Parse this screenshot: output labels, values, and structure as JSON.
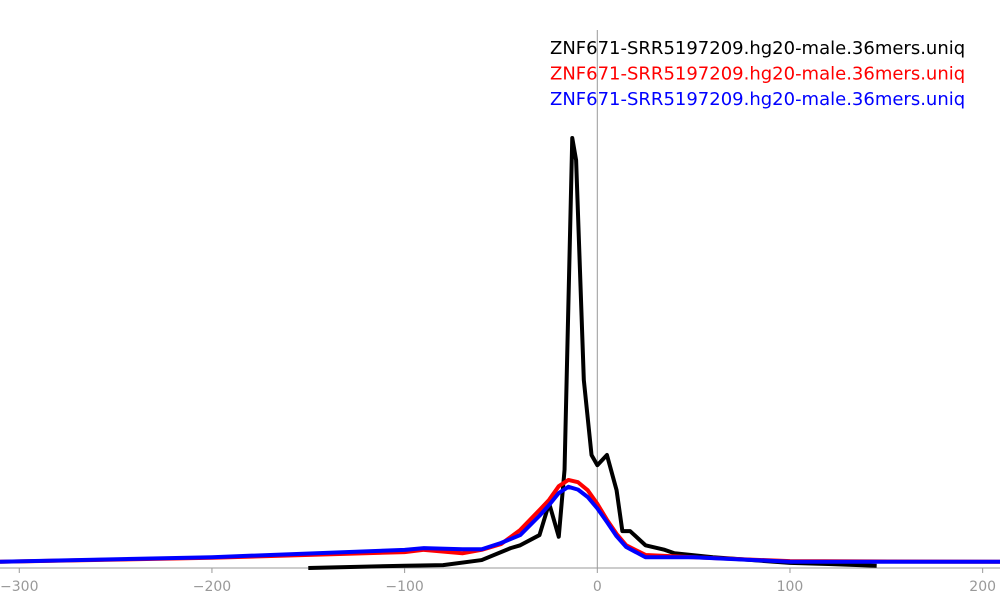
{
  "chart_data": {
    "type": "line",
    "xlim": [
      -310,
      209
    ],
    "ylim": [
      0,
      100
    ],
    "xticks": [
      {
        "value": -300,
        "label": "−300"
      },
      {
        "value": -200,
        "label": "−200"
      },
      {
        "value": -100,
        "label": "−100"
      },
      0,
      100,
      200
    ],
    "series": [
      {
        "name": "ZNF671-SRR5197209.hg20-male.36mers.uniq",
        "color": "#000000",
        "x": [
          -150,
          -100,
          -80,
          -60,
          -45,
          -40,
          -30,
          -25,
          -20,
          -17,
          -13,
          -11,
          -7,
          -3,
          0,
          5,
          10,
          13,
          17,
          25,
          35,
          40,
          60,
          80,
          100,
          120,
          145
        ],
        "values": [
          0,
          0.4,
          0.5,
          1.4,
          3.5,
          4.0,
          5.8,
          11.4,
          5.5,
          17.3,
          75.7,
          71.8,
          33.1,
          19.9,
          18.1,
          19.9,
          13.7,
          6.5,
          6.5,
          4.0,
          3.2,
          2.6,
          1.9,
          1.4,
          0.9,
          0.7,
          0.4
        ]
      },
      {
        "name": "ZNF671-SRR5197209.hg20-male.36mers.uniq",
        "color": "#ff0000",
        "x": [
          -310,
          -200,
          -100,
          -90,
          -70,
          -60,
          -50,
          -40,
          -30,
          -25,
          -20,
          -15,
          -10,
          -5,
          0,
          5,
          10,
          15,
          25,
          50,
          100,
          209
        ],
        "values": [
          1.1,
          1.8,
          2.8,
          3.2,
          2.6,
          3.2,
          4.2,
          6.7,
          10.2,
          12.0,
          14.4,
          15.5,
          15.1,
          13.7,
          11.3,
          8.5,
          6.0,
          4.0,
          2.3,
          1.9,
          1.2,
          1.1
        ]
      },
      {
        "name": "ZNF671-SRR5197209.hg20-male.36mers.uniq",
        "color": "#0000ff",
        "x": [
          -310,
          -200,
          -100,
          -90,
          -70,
          -60,
          -50,
          -40,
          -30,
          -25,
          -20,
          -15,
          -10,
          -5,
          0,
          5,
          10,
          15,
          25,
          50,
          100,
          209
        ],
        "values": [
          1.1,
          1.9,
          3.2,
          3.5,
          3.3,
          3.3,
          4.4,
          5.8,
          9.2,
          11.1,
          13.2,
          14.3,
          13.8,
          12.5,
          10.5,
          8.1,
          5.6,
          3.7,
          1.9,
          1.9,
          1.1,
          1.1
        ]
      }
    ]
  }
}
